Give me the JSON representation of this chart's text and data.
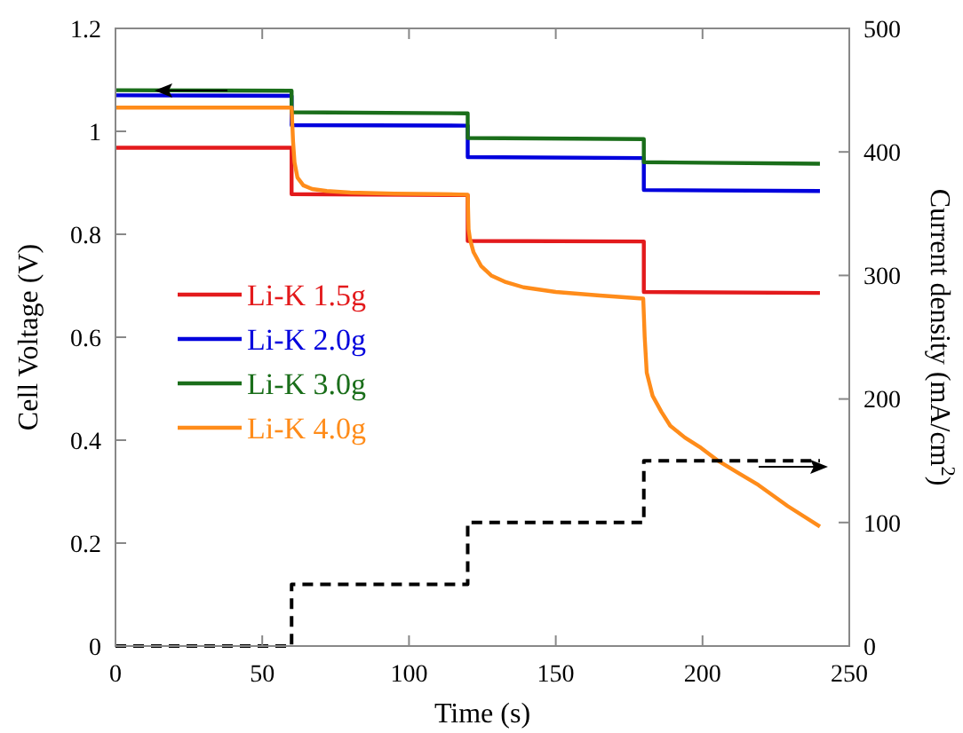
{
  "chart_data": {
    "type": "line",
    "xlabel": "Time (s)",
    "ylabel": "Cell Voltage (V)",
    "y2label": "Current density (mA/cm$^{2}$)",
    "xlim": [
      0,
      250
    ],
    "xticks": [
      0,
      50,
      100,
      150,
      200,
      250
    ],
    "ylim": [
      0,
      1.2
    ],
    "yticks": [
      0,
      0.2,
      0.4,
      0.6,
      0.8,
      1,
      1.2
    ],
    "y2lim": [
      0,
      500
    ],
    "y2ticks": [
      0,
      100,
      200,
      300,
      400,
      500
    ],
    "legend": "left",
    "series": [
      {
        "name": "Li-K 1.5g",
        "color": "#e31a1c",
        "x": [
          0,
          60,
          60,
          120,
          120,
          180,
          180,
          240
        ],
        "values": [
          0.968,
          0.968,
          0.878,
          0.876,
          0.787,
          0.786,
          0.688,
          0.686
        ]
      },
      {
        "name": "Li-K 2.0g",
        "color": "#0000dd",
        "x": [
          0,
          60,
          60,
          120,
          120,
          180,
          180,
          240
        ],
        "values": [
          1.07,
          1.069,
          1.012,
          1.011,
          0.95,
          0.948,
          0.886,
          0.884
        ]
      },
      {
        "name": "Li-K 3.0g",
        "color": "#1a6e1a",
        "x": [
          0,
          60,
          60,
          120,
          120,
          180,
          180,
          240
        ],
        "values": [
          1.08,
          1.079,
          1.037,
          1.035,
          0.987,
          0.985,
          0.94,
          0.937
        ]
      },
      {
        "name": "Li-K 4.0g",
        "color": "#ff8c1a",
        "x": [
          0,
          60,
          60.5,
          61,
          62,
          64,
          67,
          72,
          80,
          95,
          110,
          120,
          120.3,
          120.8,
          122,
          124.6,
          128,
          133,
          139,
          150,
          165,
          179.8,
          180.3,
          181,
          183,
          186,
          189,
          194,
          199,
          205,
          212,
          219,
          229,
          240
        ],
        "values": [
          1.046,
          1.046,
          0.98,
          0.94,
          0.91,
          0.895,
          0.888,
          0.884,
          0.881,
          0.879,
          0.878,
          0.877,
          0.81,
          0.79,
          0.765,
          0.738,
          0.72,
          0.707,
          0.697,
          0.688,
          0.681,
          0.675,
          0.6,
          0.531,
          0.486,
          0.455,
          0.428,
          0.405,
          0.387,
          0.361,
          0.337,
          0.313,
          0.272,
          0.232
        ]
      },
      {
        "axis": "y2",
        "color": "#000000",
        "line_style": "dashed",
        "x": [
          0,
          60,
          60,
          120,
          120,
          180,
          180,
          240
        ],
        "values": [
          0,
          0,
          50,
          50,
          100,
          100,
          150,
          150
        ]
      }
    ]
  }
}
